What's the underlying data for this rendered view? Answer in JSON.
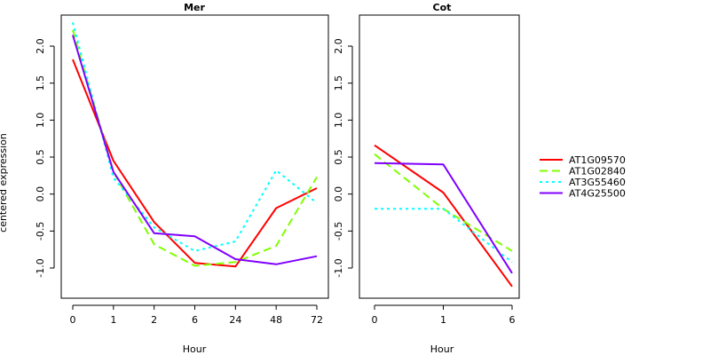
{
  "ylabel": "centered expression",
  "legend_position": "right",
  "chart_data": [
    {
      "type": "line",
      "title": "Mer",
      "xlabel": "Hour",
      "ylabel": "centered expression",
      "categories": [
        "0",
        "1",
        "2",
        "6",
        "24",
        "48",
        "72"
      ],
      "ylim": [
        -1.4,
        2.45
      ],
      "yticks": [
        "-1.0",
        "-0.5",
        "0.0",
        "0.5",
        "1.0",
        "1.5",
        "2.0"
      ],
      "series": [
        {
          "name": "AT1G09570",
          "color": "#ff0000",
          "dash": "solid",
          "values": [
            1.82,
            0.45,
            -0.38,
            -0.93,
            -0.98,
            -0.19,
            0.08
          ]
        },
        {
          "name": "AT1G02840",
          "color": "#80ff00",
          "dash": "dashed",
          "values": [
            2.22,
            0.3,
            -0.68,
            -0.97,
            -0.92,
            -0.7,
            0.23
          ]
        },
        {
          "name": "AT3G55460",
          "color": "#00ffff",
          "dash": "dotted",
          "values": [
            2.32,
            0.22,
            -0.45,
            -0.77,
            -0.64,
            0.32,
            -0.12
          ]
        },
        {
          "name": "AT4G25500",
          "color": "#8000ff",
          "dash": "solid",
          "values": [
            2.15,
            0.3,
            -0.53,
            -0.57,
            -0.88,
            -0.95,
            -0.84
          ]
        }
      ]
    },
    {
      "type": "line",
      "title": "Cot",
      "xlabel": "Hour",
      "categories": [
        "0",
        "1",
        "6"
      ],
      "ylim": [
        -1.4,
        2.45
      ],
      "yticks": [
        "-1.0",
        "-0.5",
        "0.0",
        "0.5",
        "1.0",
        "1.5",
        "2.0"
      ],
      "series": [
        {
          "name": "AT1G09570",
          "color": "#ff0000",
          "dash": "solid",
          "values": [
            0.66,
            0.02,
            -1.25
          ]
        },
        {
          "name": "AT1G02840",
          "color": "#80ff00",
          "dash": "dashed",
          "values": [
            0.54,
            -0.2,
            -0.77
          ]
        },
        {
          "name": "AT3G55460",
          "color": "#00ffff",
          "dash": "dotted",
          "values": [
            -0.2,
            -0.2,
            -0.92
          ]
        },
        {
          "name": "AT4G25500",
          "color": "#8000ff",
          "dash": "solid",
          "values": [
            0.42,
            0.4,
            -1.07
          ]
        }
      ]
    }
  ],
  "legend": [
    {
      "label": "AT1G09570",
      "color": "#ff0000",
      "dash": "solid"
    },
    {
      "label": "AT1G02840",
      "color": "#80ff00",
      "dash": "dashed"
    },
    {
      "label": "AT3G55460",
      "color": "#00ffff",
      "dash": "dotted"
    },
    {
      "label": "AT4G25500",
      "color": "#8000ff",
      "dash": "solid"
    }
  ]
}
